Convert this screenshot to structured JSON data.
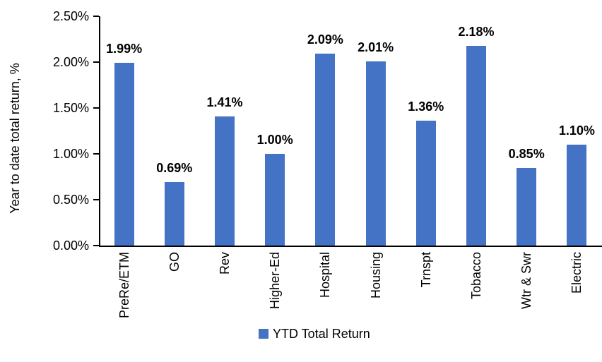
{
  "chart_data": {
    "type": "bar",
    "title": "",
    "categories": [
      "PreRe/ETM",
      "GO",
      "Rev",
      "Higher-Ed",
      "Hospital",
      "Housing",
      "Trnspt",
      "Tobacco",
      "Wtr & Swr",
      "Electric"
    ],
    "values": [
      1.99,
      0.69,
      1.41,
      1.0,
      2.09,
      2.01,
      1.36,
      2.18,
      0.85,
      1.1
    ],
    "value_labels": [
      "1.99%",
      "0.69%",
      "1.41%",
      "1.00%",
      "2.09%",
      "2.01%",
      "1.36%",
      "2.18%",
      "0.85%",
      "1.10%"
    ],
    "xlabel": "",
    "ylabel": "Year to date total return, %",
    "ylim": [
      0,
      2.5
    ],
    "ytick_values": [
      0,
      0.5,
      1.0,
      1.5,
      2.0,
      2.5
    ],
    "ytick_labels": [
      "0.00%",
      "0.50%",
      "1.00%",
      "1.50%",
      "2.00%",
      "2.50%"
    ],
    "grid": false,
    "bar_color": "#4472C4",
    "legend": {
      "position": "bottom",
      "entries": [
        {
          "label": "YTD Total Return",
          "color": "#4472C4"
        }
      ]
    }
  }
}
